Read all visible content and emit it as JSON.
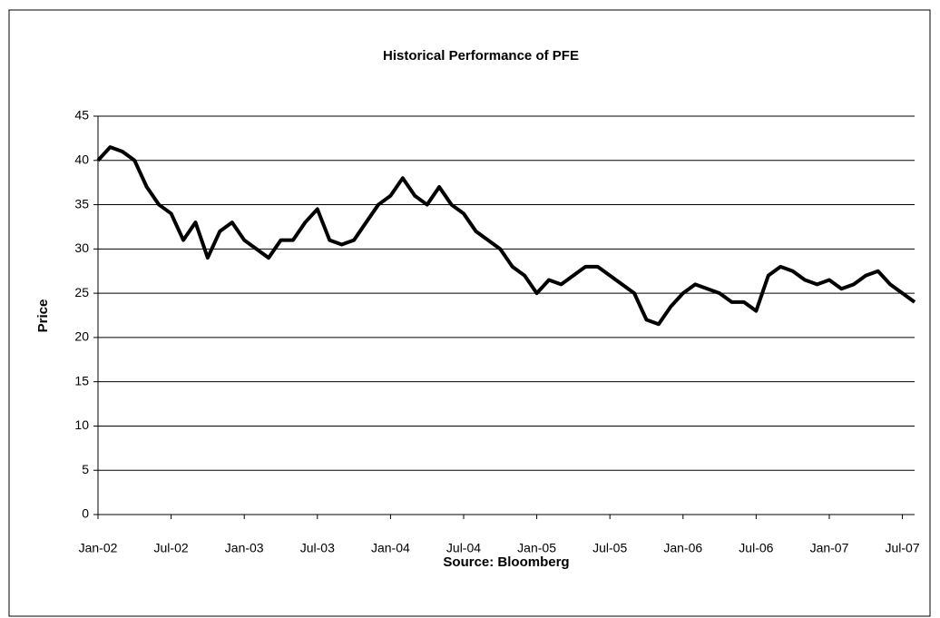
{
  "chart_data": {
    "type": "line",
    "title": "Historical Performance of PFE",
    "y_label": "Price",
    "x_label": "Source: Bloomberg",
    "color": "#000000",
    "grid": true,
    "x": [
      "2002-01",
      "2002-02",
      "2002-03",
      "2002-04",
      "2002-05",
      "2002-06",
      "2002-07",
      "2002-08",
      "2002-09",
      "2002-10",
      "2002-11",
      "2002-12",
      "2003-01",
      "2003-02",
      "2003-03",
      "2003-04",
      "2003-05",
      "2003-06",
      "2003-07",
      "2003-08",
      "2003-09",
      "2003-10",
      "2003-11",
      "2003-12",
      "2004-01",
      "2004-02",
      "2004-03",
      "2004-04",
      "2004-05",
      "2004-06",
      "2004-07",
      "2004-08",
      "2004-09",
      "2004-10",
      "2004-11",
      "2004-12",
      "2005-01",
      "2005-02",
      "2005-03",
      "2005-04",
      "2005-05",
      "2005-06",
      "2005-07",
      "2005-08",
      "2005-09",
      "2005-10",
      "2005-11",
      "2005-12",
      "2006-01",
      "2006-02",
      "2006-03",
      "2006-04",
      "2006-05",
      "2006-06",
      "2006-07",
      "2006-08",
      "2006-09",
      "2006-10",
      "2006-11",
      "2006-12",
      "2007-01",
      "2007-02",
      "2007-03",
      "2007-04",
      "2007-05",
      "2007-06",
      "2007-07",
      "2007-08"
    ],
    "values": [
      40,
      41.5,
      41,
      40,
      37,
      35,
      34,
      31,
      33,
      29,
      32,
      33,
      31,
      30,
      29,
      31,
      31,
      33,
      34.5,
      31,
      30.5,
      31,
      33,
      35,
      36,
      38,
      36,
      35,
      37,
      35,
      34,
      32,
      31,
      30,
      28,
      27,
      25,
      26.5,
      26,
      27,
      28,
      28,
      27,
      26,
      25,
      22,
      21.5,
      23.5,
      25,
      26,
      25.5,
      25,
      24,
      24,
      23,
      27,
      28,
      27.5,
      26.5,
      26,
      26.5,
      25.5,
      26,
      27,
      27.5,
      26,
      25,
      24
    ],
    "xlim": [
      "2002-01",
      "2007-08"
    ],
    "xticks": [
      {
        "value": "2002-01",
        "label": "Jan-02"
      },
      {
        "value": "2002-07",
        "label": "Jul-02"
      },
      {
        "value": "2003-01",
        "label": "Jan-03"
      },
      {
        "value": "2003-07",
        "label": "Jul-03"
      },
      {
        "value": "2004-01",
        "label": "Jan-04"
      },
      {
        "value": "2004-07",
        "label": "Jul-04"
      },
      {
        "value": "2005-01",
        "label": "Jan-05"
      },
      {
        "value": "2005-07",
        "label": "Jul-05"
      },
      {
        "value": "2006-01",
        "label": "Jan-06"
      },
      {
        "value": "2006-07",
        "label": "Jul-06"
      },
      {
        "value": "2007-01",
        "label": "Jan-07"
      },
      {
        "value": "2007-07",
        "label": "Jul-07"
      }
    ],
    "ylim": [
      0,
      45
    ],
    "yticks": [
      0,
      5,
      10,
      15,
      20,
      25,
      30,
      35,
      40,
      45
    ]
  }
}
